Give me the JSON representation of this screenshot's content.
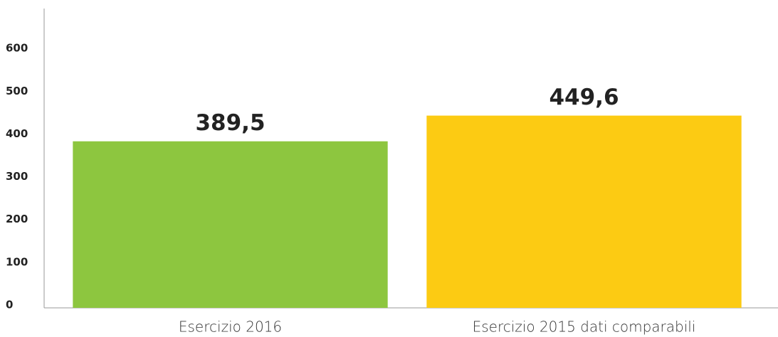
{
  "chart_data": {
    "type": "bar",
    "categories": [
      "Esercizio 2016",
      "Esercizio 2015 dati comparabili"
    ],
    "values": [
      389.5,
      449.6
    ],
    "value_labels": [
      "389,5",
      "449,6"
    ],
    "colors": [
      "#8dc63f",
      "#fccb13"
    ],
    "ylim": [
      0,
      700
    ],
    "yticks": [
      0,
      100,
      200,
      300,
      400,
      500,
      600
    ],
    "grid": false
  }
}
